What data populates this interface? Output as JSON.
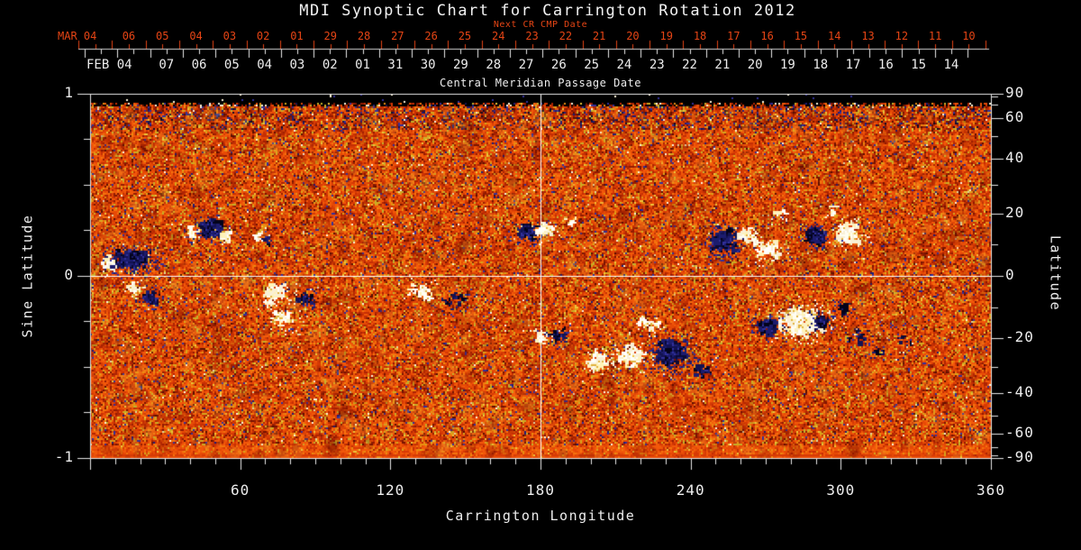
{
  "title": "MDI Synoptic Chart for Carrington Rotation 2012",
  "colors": {
    "background": "#000000",
    "axis_red": "#e64515",
    "axis_white": "#ededed",
    "grid_line": "#ffffff"
  },
  "top_axis": {
    "caption": "Next CR CMP Date",
    "month_year_label": "MAR 04",
    "day_labels": [
      "06",
      "05",
      "04",
      "03",
      "02",
      "01",
      "29",
      "28",
      "27",
      "26",
      "25",
      "24",
      "23",
      "22",
      "21",
      "20",
      "19",
      "18",
      "17",
      "16",
      "15",
      "14",
      "13",
      "12",
      "11",
      "10"
    ]
  },
  "cmp_axis": {
    "caption": "Central Meridian Passage Date",
    "month_year_label": "FEB 04",
    "day_labels": [
      "07",
      "06",
      "05",
      "04",
      "03",
      "02",
      "01",
      "31",
      "30",
      "29",
      "28",
      "27",
      "26",
      "25",
      "24",
      "23",
      "22",
      "21",
      "20",
      "19",
      "18",
      "17",
      "16",
      "15",
      "14"
    ]
  },
  "left_axis": {
    "label": "Sine Latitude",
    "tick_labels": [
      "1",
      "0",
      "-1"
    ],
    "tick_values": [
      1,
      0,
      -1
    ],
    "minor_step": 0.25
  },
  "right_axis": {
    "label": "Latitude",
    "tick_labels": [
      "90",
      "60",
      "40",
      "20",
      "0",
      "-20",
      "-40",
      "-60",
      "-90"
    ],
    "tick_values": [
      90,
      60,
      40,
      20,
      0,
      -20,
      -40,
      -60,
      -90
    ],
    "minor_tick_values": [
      80,
      70,
      50,
      30,
      10,
      -10,
      -30,
      -50,
      -70,
      -80
    ]
  },
  "bottom_axis": {
    "label": "Carrington Longitude",
    "tick_labels": [
      "60",
      "120",
      "180",
      "240",
      "300",
      "360"
    ],
    "tick_values": [
      60,
      120,
      180,
      240,
      300,
      360
    ],
    "minor_step": 10,
    "range": [
      0,
      360
    ]
  },
  "chart_data": {
    "type": "heatmap",
    "title": "MDI Synoptic Chart for Carrington Rotation 2012",
    "xlabel": "Carrington Longitude",
    "ylabel": "Sine Latitude",
    "ylabel_right": "Latitude",
    "xlim": [
      0,
      360
    ],
    "ylim": [
      -1,
      1
    ],
    "grid": "off",
    "reference_lines": {
      "vertical_at_longitude": 180,
      "horizontal_at_sine_latitude": 0
    },
    "colormap": {
      "quiet_sun_noise": [
        "#f2580a",
        "#e64a06",
        "#d63a05",
        "#c52f04",
        "#ad2403",
        "#921c02",
        "#771402",
        "#f4740e",
        "#ea8e11",
        "#d6a71d",
        "#c2b12b",
        "#eec63a",
        "#5a0f00",
        "#32309c",
        "#1d1c76",
        "#fbf4da"
      ],
      "negative_polarity": "#0a0a36",
      "positive_polarity": "#fffdf0",
      "polar_gap": "#000000"
    },
    "polar_gap_above_sine_latitude": 0.95,
    "active_regions": [
      {
        "longitude": 8,
        "sine_latitude": 0.06,
        "rx_deg": 3.6,
        "ry_sine": 0.045,
        "polarity": "positive",
        "strength": "normal"
      },
      {
        "longitude": 17,
        "sine_latitude": 0.09,
        "rx_deg": 8.0,
        "ry_sine": 0.055,
        "polarity": "negative",
        "strength": "strong"
      },
      {
        "longitude": 18,
        "sine_latitude": -0.07,
        "rx_deg": 3.2,
        "ry_sine": 0.035,
        "polarity": "positive",
        "strength": "normal"
      },
      {
        "longitude": 24,
        "sine_latitude": -0.12,
        "rx_deg": 4.3,
        "ry_sine": 0.045,
        "polarity": "negative",
        "strength": "normal"
      },
      {
        "longitude": 41,
        "sine_latitude": 0.24,
        "rx_deg": 2.5,
        "ry_sine": 0.035,
        "polarity": "positive",
        "strength": "normal"
      },
      {
        "longitude": 48,
        "sine_latitude": 0.26,
        "rx_deg": 5.0,
        "ry_sine": 0.05,
        "polarity": "negative",
        "strength": "strong"
      },
      {
        "longitude": 54,
        "sine_latitude": 0.22,
        "rx_deg": 2.9,
        "ry_sine": 0.035,
        "polarity": "positive",
        "strength": "normal"
      },
      {
        "longitude": 68,
        "sine_latitude": 0.21,
        "rx_deg": 2.5,
        "ry_sine": 0.03,
        "polarity": "positive",
        "strength": "weak"
      },
      {
        "longitude": 71,
        "sine_latitude": 0.19,
        "rx_deg": 1.8,
        "ry_sine": 0.025,
        "polarity": "negative",
        "strength": "weak"
      },
      {
        "longitude": 74,
        "sine_latitude": -0.1,
        "rx_deg": 5.4,
        "ry_sine": 0.06,
        "polarity": "positive",
        "strength": "normal"
      },
      {
        "longitude": 77,
        "sine_latitude": -0.23,
        "rx_deg": 4.5,
        "ry_sine": 0.05,
        "polarity": "positive",
        "strength": "normal"
      },
      {
        "longitude": 86,
        "sine_latitude": -0.13,
        "rx_deg": 3.6,
        "ry_sine": 0.04,
        "polarity": "negative",
        "strength": "normal"
      },
      {
        "longitude": 133,
        "sine_latitude": -0.08,
        "rx_deg": 6.5,
        "ry_sine": 0.045,
        "polarity": "positive",
        "strength": "weak"
      },
      {
        "longitude": 146,
        "sine_latitude": -0.13,
        "rx_deg": 5.0,
        "ry_sine": 0.045,
        "polarity": "negative",
        "strength": "weak"
      },
      {
        "longitude": 175,
        "sine_latitude": 0.24,
        "rx_deg": 3.6,
        "ry_sine": 0.045,
        "polarity": "negative",
        "strength": "strong"
      },
      {
        "longitude": 182,
        "sine_latitude": 0.25,
        "rx_deg": 3.2,
        "ry_sine": 0.045,
        "polarity": "positive",
        "strength": "normal"
      },
      {
        "longitude": 192,
        "sine_latitude": 0.3,
        "rx_deg": 2.9,
        "ry_sine": 0.025,
        "polarity": "positive",
        "strength": "weak"
      },
      {
        "longitude": 181,
        "sine_latitude": -0.33,
        "rx_deg": 2.9,
        "ry_sine": 0.035,
        "polarity": "positive",
        "strength": "normal"
      },
      {
        "longitude": 187,
        "sine_latitude": -0.33,
        "rx_deg": 3.6,
        "ry_sine": 0.035,
        "polarity": "negative",
        "strength": "normal"
      },
      {
        "longitude": 203,
        "sine_latitude": -0.47,
        "rx_deg": 5.0,
        "ry_sine": 0.055,
        "polarity": "positive",
        "strength": "normal"
      },
      {
        "longitude": 216,
        "sine_latitude": -0.44,
        "rx_deg": 6.5,
        "ry_sine": 0.065,
        "polarity": "positive",
        "strength": "normal"
      },
      {
        "longitude": 224,
        "sine_latitude": -0.27,
        "rx_deg": 5.0,
        "ry_sine": 0.045,
        "polarity": "positive",
        "strength": "weak"
      },
      {
        "longitude": 232,
        "sine_latitude": -0.42,
        "rx_deg": 7.2,
        "ry_sine": 0.075,
        "polarity": "negative",
        "strength": "strong"
      },
      {
        "longitude": 244,
        "sine_latitude": -0.52,
        "rx_deg": 4.3,
        "ry_sine": 0.045,
        "polarity": "negative",
        "strength": "weak"
      },
      {
        "longitude": 253,
        "sine_latitude": 0.19,
        "rx_deg": 5.8,
        "ry_sine": 0.075,
        "polarity": "negative",
        "strength": "strong"
      },
      {
        "longitude": 263,
        "sine_latitude": 0.22,
        "rx_deg": 3.6,
        "ry_sine": 0.045,
        "polarity": "positive",
        "strength": "normal"
      },
      {
        "longitude": 271,
        "sine_latitude": 0.14,
        "rx_deg": 5.0,
        "ry_sine": 0.055,
        "polarity": "positive",
        "strength": "normal"
      },
      {
        "longitude": 276,
        "sine_latitude": 0.33,
        "rx_deg": 3.6,
        "ry_sine": 0.03,
        "polarity": "positive",
        "strength": "weak"
      },
      {
        "longitude": 290,
        "sine_latitude": 0.22,
        "rx_deg": 4.0,
        "ry_sine": 0.05,
        "polarity": "negative",
        "strength": "strong"
      },
      {
        "longitude": 303,
        "sine_latitude": 0.24,
        "rx_deg": 5.8,
        "ry_sine": 0.065,
        "polarity": "positive",
        "strength": "normal"
      },
      {
        "longitude": 297,
        "sine_latitude": 0.36,
        "rx_deg": 2.9,
        "ry_sine": 0.025,
        "polarity": "positive",
        "strength": "weak"
      },
      {
        "longitude": 284,
        "sine_latitude": -0.25,
        "rx_deg": 9.4,
        "ry_sine": 0.085,
        "polarity": "positive",
        "strength": "strong"
      },
      {
        "longitude": 271,
        "sine_latitude": -0.28,
        "rx_deg": 5.0,
        "ry_sine": 0.055,
        "polarity": "negative",
        "strength": "normal"
      },
      {
        "longitude": 292,
        "sine_latitude": -0.25,
        "rx_deg": 3.6,
        "ry_sine": 0.045,
        "polarity": "negative",
        "strength": "normal"
      },
      {
        "longitude": 301,
        "sine_latitude": -0.17,
        "rx_deg": 3.6,
        "ry_sine": 0.035,
        "polarity": "negative",
        "strength": "weak"
      },
      {
        "longitude": 307,
        "sine_latitude": -0.33,
        "rx_deg": 4.3,
        "ry_sine": 0.045,
        "polarity": "negative",
        "strength": "weak"
      },
      {
        "longitude": 316,
        "sine_latitude": -0.42,
        "rx_deg": 3.6,
        "ry_sine": 0.03,
        "polarity": "negative",
        "strength": "weak"
      },
      {
        "longitude": 326,
        "sine_latitude": -0.35,
        "rx_deg": 2.9,
        "ry_sine": 0.025,
        "polarity": "negative",
        "strength": "weak"
      }
    ]
  }
}
